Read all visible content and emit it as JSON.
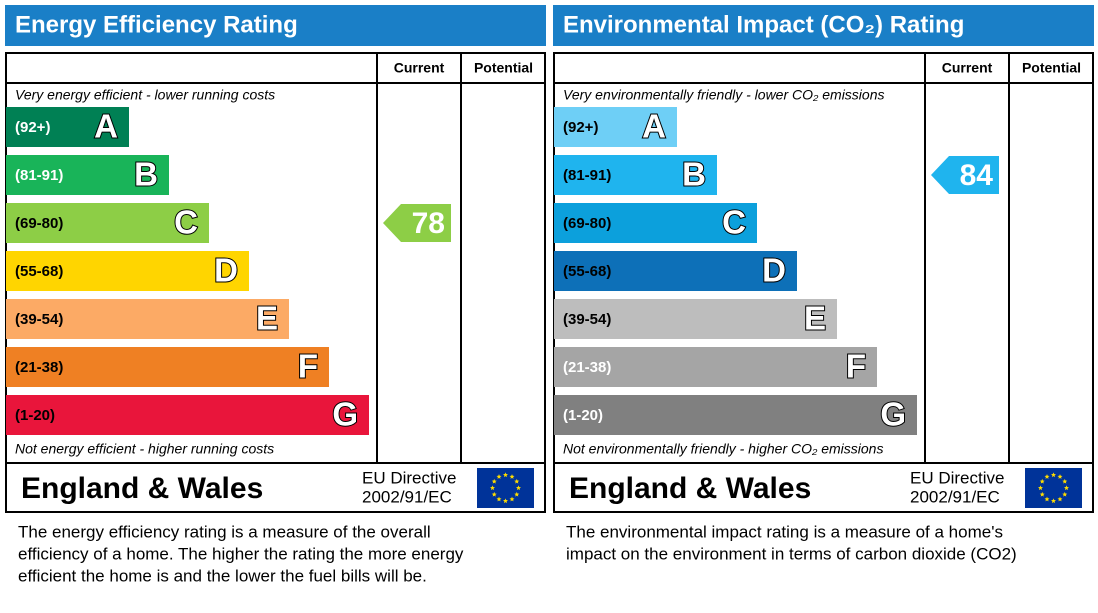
{
  "panels": [
    {
      "title": "Energy Efficiency Rating",
      "title_color": "#1a7fc7",
      "columns": [
        "Current",
        "Potential"
      ],
      "top_note": "Very energy efficient - lower running costs",
      "bottom_note": "Not energy efficient - higher running costs",
      "bands": [
        {
          "range": "(92+)",
          "letter": "A",
          "color": "#008054",
          "label_color": "#ffffff"
        },
        {
          "range": "(81-91)",
          "letter": "B",
          "color": "#19b459",
          "label_color": "#ffffff"
        },
        {
          "range": "(69-80)",
          "letter": "C",
          "color": "#8dce46",
          "label_color": "#000000"
        },
        {
          "range": "(55-68)",
          "letter": "D",
          "color": "#ffd500",
          "label_color": "#000000"
        },
        {
          "range": "(39-54)",
          "letter": "E",
          "color": "#fcaa65",
          "label_color": "#000000"
        },
        {
          "range": "(21-38)",
          "letter": "F",
          "color": "#ef8023",
          "label_color": "#000000"
        },
        {
          "range": "(1-20)",
          "letter": "G",
          "color": "#e9153b",
          "label_color": "#000000"
        }
      ],
      "current": 78,
      "region": "England & Wales",
      "directive": "EU Directive",
      "directive_code": "2002/91/EC",
      "description": [
        "The energy efficiency rating is a measure of the overall",
        "efficiency of a home.  The higher the rating the more energy",
        "efficient the home is and the lower the fuel bills will be."
      ]
    },
    {
      "title": "Environmental Impact (CO₂) Rating",
      "title_color": "#1a7fc7",
      "columns": [
        "Current",
        "Potential"
      ],
      "top_note": "Very environmentally friendly - lower CO₂ emissions",
      "bottom_note": "Not environmentally friendly - higher CO₂ emissions",
      "bands": [
        {
          "range": "(92+)",
          "letter": "A",
          "color": "#6ecff6",
          "label_color": "#000000"
        },
        {
          "range": "(81-91)",
          "letter": "B",
          "color": "#1fb4ee",
          "label_color": "#000000"
        },
        {
          "range": "(69-80)",
          "letter": "C",
          "color": "#0ca0dc",
          "label_color": "#000000"
        },
        {
          "range": "(55-68)",
          "letter": "D",
          "color": "#0d70b8",
          "label_color": "#000000"
        },
        {
          "range": "(39-54)",
          "letter": "E",
          "color": "#bdbdbd",
          "label_color": "#000000"
        },
        {
          "range": "(21-38)",
          "letter": "F",
          "color": "#a5a5a5",
          "label_color": "#ffffff"
        },
        {
          "range": "(1-20)",
          "letter": "G",
          "color": "#808080",
          "label_color": "#ffffff"
        }
      ],
      "current": 84,
      "region": "England & Wales",
      "directive": "EU Directive",
      "directive_code": "2002/91/EC",
      "description": [
        "The environmental impact rating is a measure of a home's",
        "impact on the environment in terms of carbon dioxide (CO2)"
      ]
    }
  ]
}
